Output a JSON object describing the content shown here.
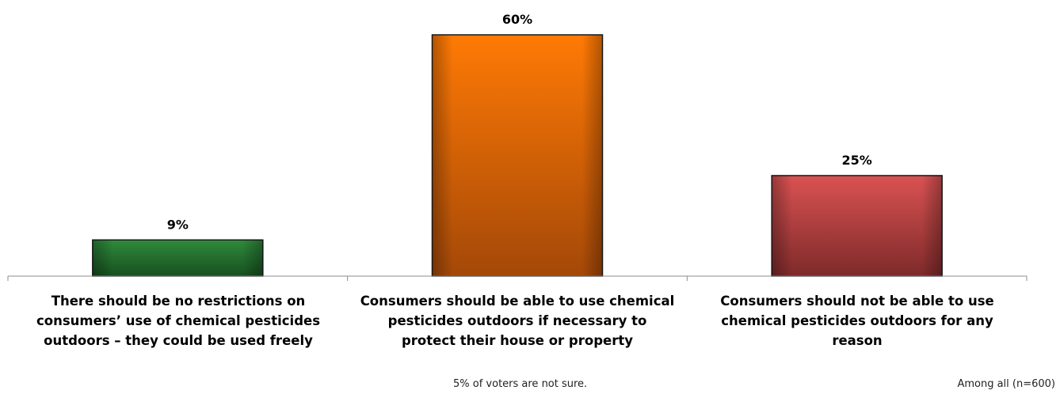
{
  "chart_data": {
    "type": "bar",
    "categories": [
      "There should be no restrictions on consumers’ use of chemical pesticides outdoors – they could be used freely",
      "Consumers should be able to use chemical pesticides outdoors if necessary to protect their house or property",
      "Consumers should not be able to use chemical pesticides outdoors for any reason"
    ],
    "values": [
      9,
      60,
      25
    ],
    "value_labels": [
      "9%",
      "60%",
      "25%"
    ],
    "ylim": [
      0,
      60
    ],
    "colors": [
      "#2e7d3a",
      "#ff7300",
      "#d24a4a"
    ],
    "title": "",
    "xlabel": "",
    "ylabel": "",
    "grid": false,
    "legend": "none"
  },
  "footnote": "5% of voters are not sure.",
  "base_note": "Among all (n=600)"
}
